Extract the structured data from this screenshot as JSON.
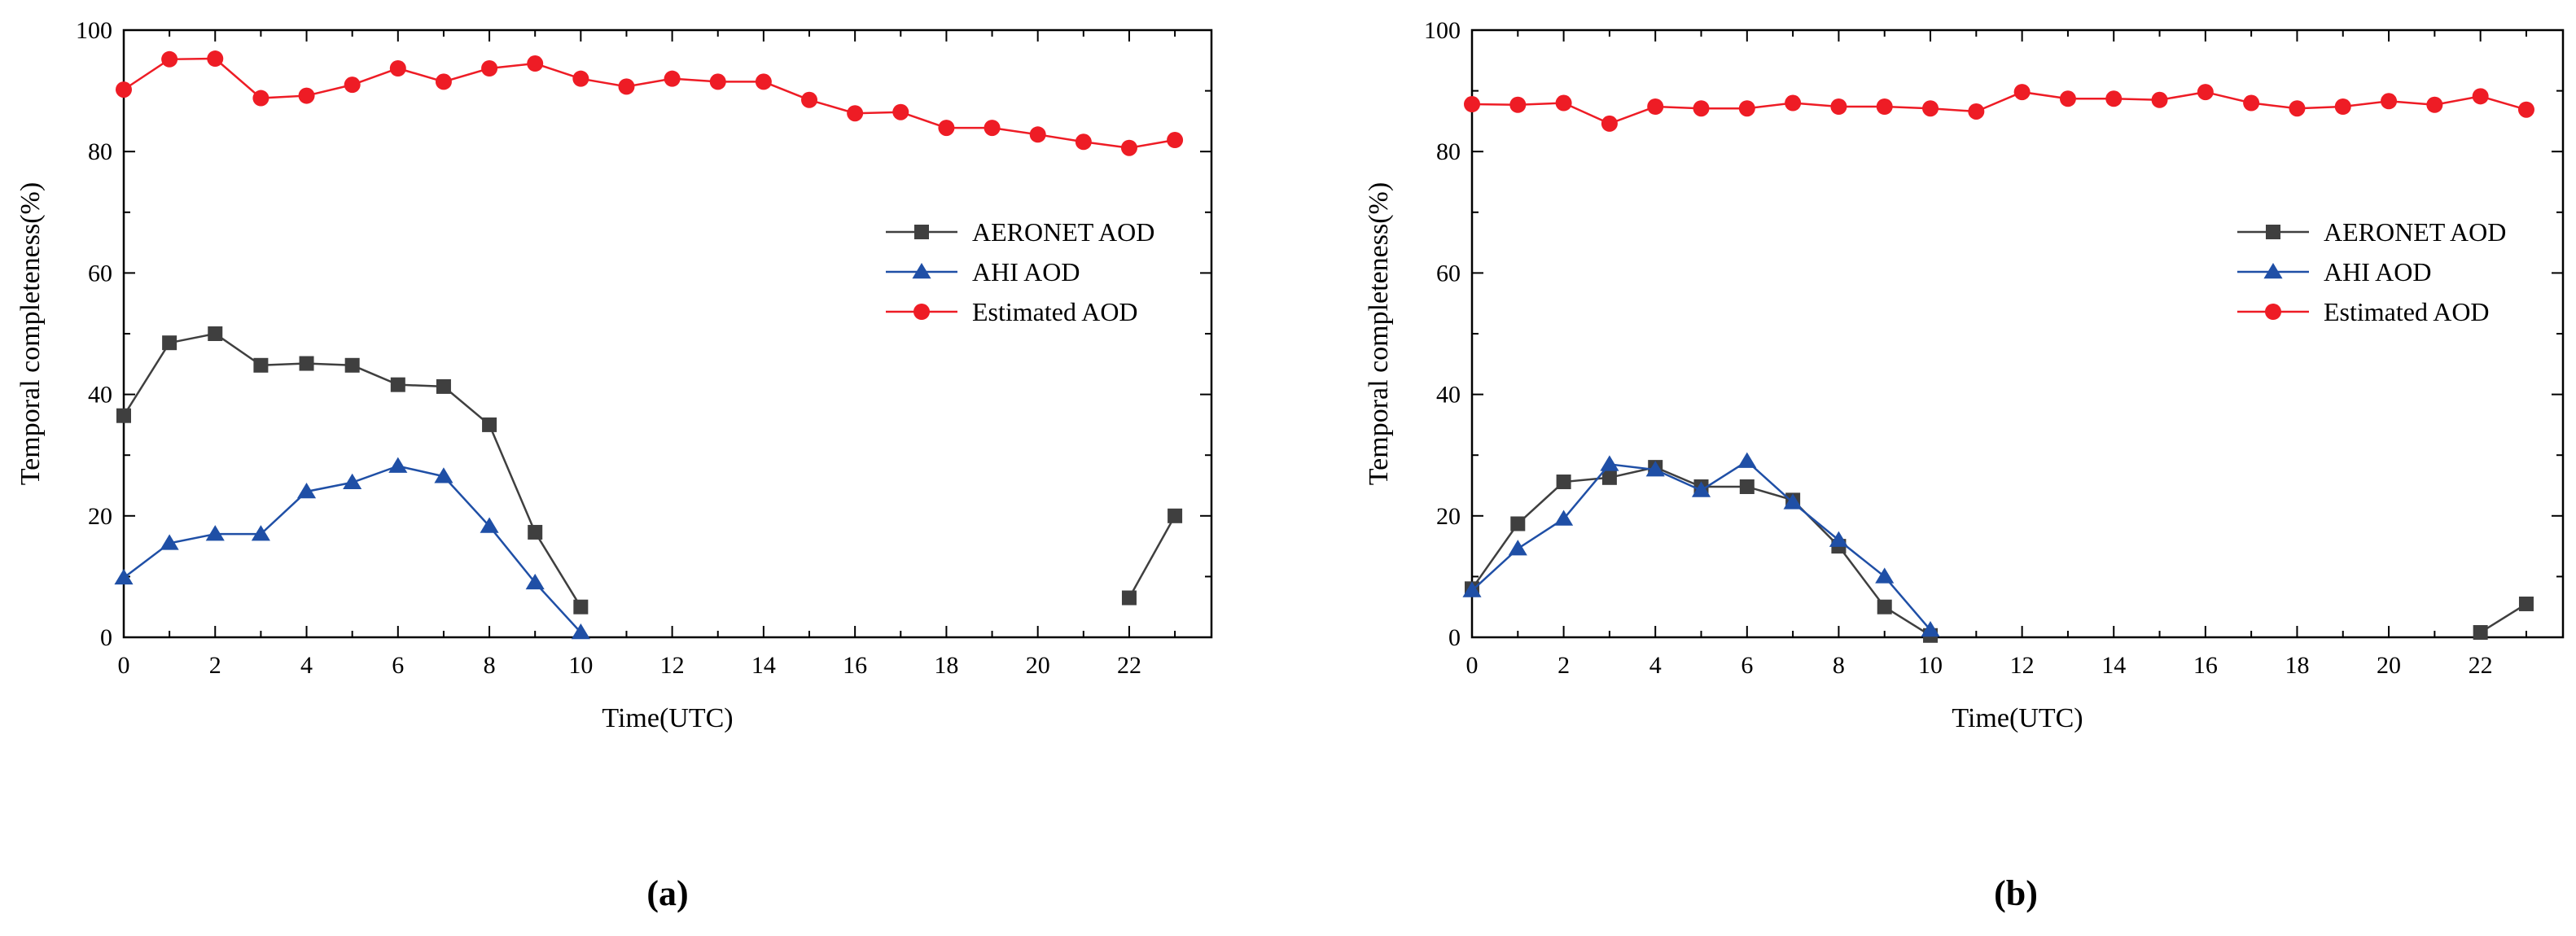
{
  "chart_data": [
    {
      "type": "line",
      "panel_label": "(a)",
      "xlabel": "Time(UTC)",
      "ylabel": "Temporal completeness(%)",
      "xlim": [
        0,
        23.8
      ],
      "ylim": [
        0,
        100
      ],
      "xticks": [
        0,
        2,
        4,
        6,
        8,
        10,
        12,
        14,
        16,
        18,
        20,
        22
      ],
      "yticks": [
        0,
        20,
        40,
        60,
        80,
        100
      ],
      "legend_position": "right",
      "series": [
        {
          "name": "AERONET AOD",
          "color": "#3f3f3f",
          "marker": "square",
          "points": [
            [
              0,
              36.5
            ],
            [
              1,
              48.5
            ],
            [
              2,
              50
            ],
            [
              3,
              44.8
            ],
            [
              4,
              45.1
            ],
            [
              5,
              44.8
            ],
            [
              6,
              41.6
            ],
            [
              7,
              41.3
            ],
            [
              8,
              35
            ],
            [
              9,
              17.3
            ],
            [
              10,
              5
            ],
            [
              22,
              6.5
            ],
            [
              23,
              20
            ]
          ],
          "segments": [
            [
              0,
              10
            ],
            [
              22,
              23
            ]
          ]
        },
        {
          "name": "AHI AOD",
          "color": "#1f4fa6",
          "marker": "triangle",
          "points": [
            [
              0,
              9.8
            ],
            [
              1,
              15.5
            ],
            [
              2,
              17
            ],
            [
              3,
              17
            ],
            [
              4,
              24
            ],
            [
              5,
              25.5
            ],
            [
              6,
              28.2
            ],
            [
              7,
              26.5
            ],
            [
              8,
              18.3
            ],
            [
              9,
              9
            ],
            [
              10,
              0.8
            ]
          ],
          "segments": [
            [
              0,
              10
            ]
          ]
        },
        {
          "name": "Estimated AOD",
          "color": "#ee1c25",
          "marker": "circle",
          "points": [
            [
              0,
              90.2
            ],
            [
              1,
              95.2
            ],
            [
              2,
              95.3
            ],
            [
              3,
              88.8
            ],
            [
              4,
              89.2
            ],
            [
              5,
              91
            ],
            [
              6,
              93.7
            ],
            [
              7,
              91.5
            ],
            [
              8,
              93.7
            ],
            [
              9,
              94.5
            ],
            [
              10,
              92
            ],
            [
              11,
              90.7
            ],
            [
              12,
              92
            ],
            [
              13,
              91.5
            ],
            [
              14,
              91.5
            ],
            [
              15,
              88.5
            ],
            [
              16,
              86.3
            ],
            [
              17,
              86.5
            ],
            [
              18,
              83.9
            ],
            [
              19,
              83.9
            ],
            [
              20,
              82.8
            ],
            [
              21,
              81.6
            ],
            [
              22,
              80.6
            ],
            [
              23,
              81.9
            ]
          ],
          "segments": [
            [
              0,
              23
            ]
          ]
        }
      ]
    },
    {
      "type": "line",
      "panel_label": "(b)",
      "xlabel": "Time(UTC)",
      "ylabel": "Temporal completeness(%)",
      "xlim": [
        0,
        23.8
      ],
      "ylim": [
        0,
        100
      ],
      "xticks": [
        0,
        2,
        4,
        6,
        8,
        10,
        12,
        14,
        16,
        18,
        20,
        22
      ],
      "yticks": [
        0,
        20,
        40,
        60,
        80,
        100
      ],
      "legend_position": "right",
      "series": [
        {
          "name": "AERONET AOD",
          "color": "#3f3f3f",
          "marker": "square",
          "points": [
            [
              0,
              8
            ],
            [
              1,
              18.7
            ],
            [
              2,
              25.6
            ],
            [
              3,
              26.3
            ],
            [
              4,
              28
            ],
            [
              5,
              24.8
            ],
            [
              6,
              24.8
            ],
            [
              7,
              22.6
            ],
            [
              8,
              15
            ],
            [
              9,
              5
            ],
            [
              10,
              0.3
            ],
            [
              22,
              0.8
            ],
            [
              23,
              5.5
            ]
          ],
          "segments": [
            [
              0,
              10
            ],
            [
              22,
              23
            ]
          ]
        },
        {
          "name": "AHI AOD",
          "color": "#1f4fa6",
          "marker": "triangle",
          "points": [
            [
              0,
              7.7
            ],
            [
              1,
              14.6
            ],
            [
              2,
              19.5
            ],
            [
              3,
              28.5
            ],
            [
              4,
              27.6
            ],
            [
              5,
              24.2
            ],
            [
              6,
              29
            ],
            [
              7,
              22.2
            ],
            [
              8,
              16
            ],
            [
              9,
              10
            ],
            [
              10,
              1.2
            ]
          ],
          "segments": [
            [
              0,
              10
            ]
          ]
        },
        {
          "name": "Estimated AOD",
          "color": "#ee1c25",
          "marker": "circle",
          "points": [
            [
              0,
              87.8
            ],
            [
              1,
              87.7
            ],
            [
              2,
              88
            ],
            [
              3,
              84.6
            ],
            [
              4,
              87.4
            ],
            [
              5,
              87.1
            ],
            [
              6,
              87.1
            ],
            [
              7,
              88
            ],
            [
              8,
              87.4
            ],
            [
              9,
              87.4
            ],
            [
              10,
              87.1
            ],
            [
              11,
              86.6
            ],
            [
              12,
              89.8
            ],
            [
              13,
              88.7
            ],
            [
              14,
              88.7
            ],
            [
              15,
              88.5
            ],
            [
              16,
              89.8
            ],
            [
              17,
              88
            ],
            [
              18,
              87.1
            ],
            [
              19,
              87.4
            ],
            [
              20,
              88.3
            ],
            [
              21,
              87.7
            ],
            [
              22,
              89.1
            ],
            [
              23,
              86.9
            ]
          ],
          "segments": [
            [
              0,
              23
            ]
          ]
        }
      ]
    }
  ]
}
